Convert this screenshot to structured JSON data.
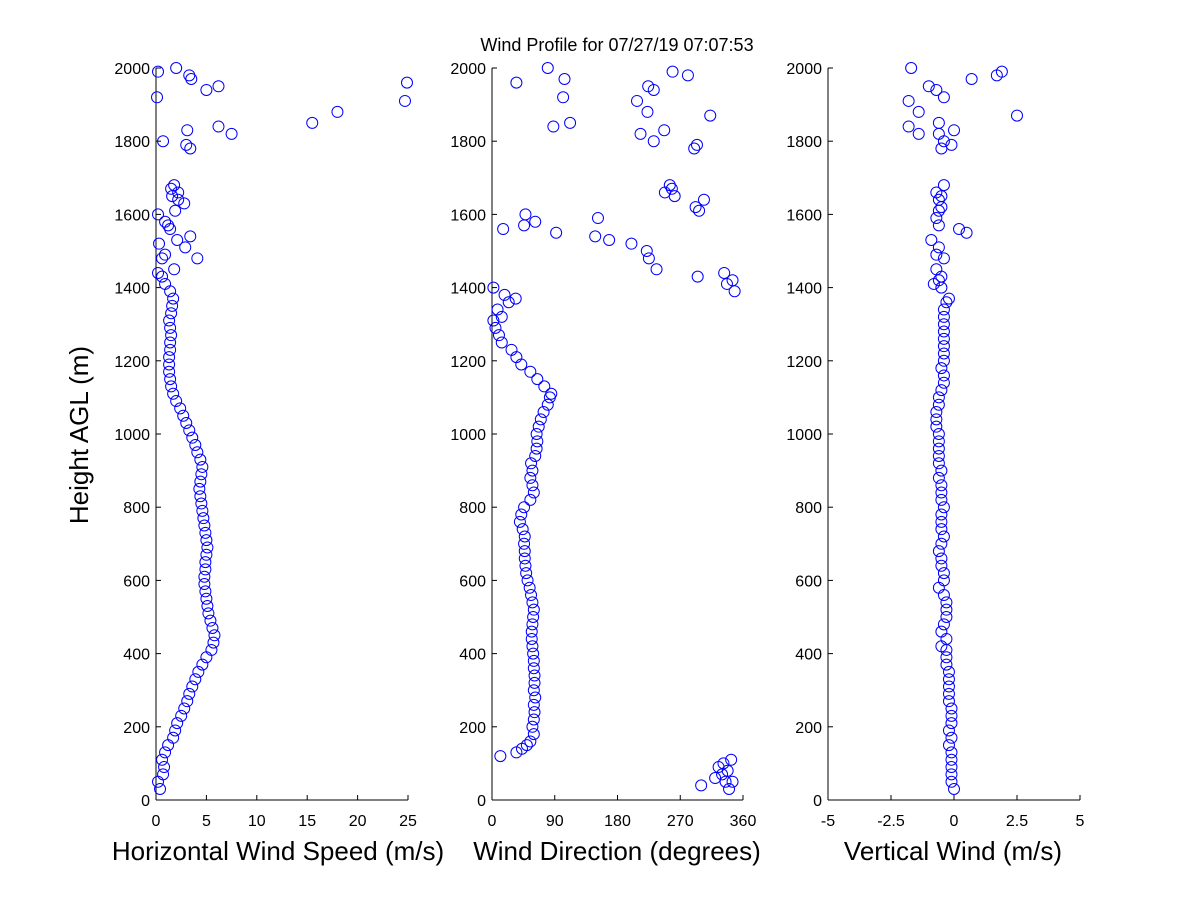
{
  "title": "Wind Profile for  07/27/19 07:07:53",
  "marker_color": "#0000ff",
  "chart_data": [
    {
      "type": "scatter",
      "xlabel": "Horizontal Wind Speed (m/s)",
      "ylabel": "Height AGL (m)",
      "xlim": [
        0,
        25
      ],
      "ylim": [
        0,
        2000
      ],
      "xticks": [
        "0",
        "5",
        "10",
        "15",
        "20",
        "25"
      ],
      "xtick_values": [
        0,
        5,
        10,
        15,
        20,
        25
      ],
      "yticks": [
        "0",
        "200",
        "400",
        "600",
        "800",
        "1000",
        "1200",
        "1400",
        "1600",
        "1800",
        "2000"
      ],
      "ytick_values": [
        0,
        200,
        400,
        600,
        800,
        1000,
        1200,
        1400,
        1600,
        1800,
        2000
      ],
      "grid": false,
      "points": [
        [
          0.4,
          30
        ],
        [
          0.2,
          50
        ],
        [
          0.7,
          70
        ],
        [
          0.8,
          90
        ],
        [
          0.6,
          110
        ],
        [
          0.9,
          130
        ],
        [
          1.2,
          150
        ],
        [
          1.7,
          170
        ],
        [
          1.9,
          190
        ],
        [
          2.1,
          210
        ],
        [
          2.5,
          230
        ],
        [
          2.8,
          250
        ],
        [
          3.1,
          270
        ],
        [
          3.3,
          290
        ],
        [
          3.6,
          310
        ],
        [
          3.9,
          330
        ],
        [
          4.2,
          350
        ],
        [
          4.6,
          370
        ],
        [
          5.0,
          390
        ],
        [
          5.5,
          410
        ],
        [
          5.7,
          430
        ],
        [
          5.8,
          450
        ],
        [
          5.6,
          470
        ],
        [
          5.4,
          490
        ],
        [
          5.2,
          510
        ],
        [
          5.1,
          530
        ],
        [
          5.0,
          550
        ],
        [
          4.9,
          570
        ],
        [
          4.8,
          590
        ],
        [
          4.8,
          610
        ],
        [
          4.9,
          630
        ],
        [
          4.9,
          650
        ],
        [
          5.0,
          670
        ],
        [
          5.1,
          690
        ],
        [
          5.0,
          710
        ],
        [
          4.9,
          730
        ],
        [
          4.8,
          750
        ],
        [
          4.7,
          770
        ],
        [
          4.6,
          790
        ],
        [
          4.5,
          810
        ],
        [
          4.4,
          830
        ],
        [
          4.3,
          850
        ],
        [
          4.4,
          870
        ],
        [
          4.5,
          890
        ],
        [
          4.6,
          910
        ],
        [
          4.4,
          930
        ],
        [
          4.1,
          950
        ],
        [
          3.9,
          970
        ],
        [
          3.6,
          990
        ],
        [
          3.3,
          1010
        ],
        [
          3.0,
          1030
        ],
        [
          2.7,
          1050
        ],
        [
          2.4,
          1070
        ],
        [
          2.0,
          1090
        ],
        [
          1.7,
          1110
        ],
        [
          1.5,
          1130
        ],
        [
          1.4,
          1150
        ],
        [
          1.3,
          1170
        ],
        [
          1.3,
          1190
        ],
        [
          1.3,
          1210
        ],
        [
          1.4,
          1230
        ],
        [
          1.4,
          1250
        ],
        [
          1.5,
          1270
        ],
        [
          1.4,
          1290
        ],
        [
          1.3,
          1310
        ],
        [
          1.5,
          1330
        ],
        [
          1.6,
          1350
        ],
        [
          1.7,
          1370
        ],
        [
          1.4,
          1390
        ],
        [
          0.9,
          1410
        ],
        [
          0.6,
          1430
        ],
        [
          0.2,
          1440
        ],
        [
          1.8,
          1450
        ],
        [
          0.9,
          1490
        ],
        [
          0.6,
          1480
        ],
        [
          2.9,
          1510
        ],
        [
          2.1,
          1530
        ],
        [
          3.4,
          1540
        ],
        [
          1.4,
          1560
        ],
        [
          1.2,
          1570
        ],
        [
          0.9,
          1580
        ],
        [
          0.2,
          1600
        ],
        [
          1.9,
          1610
        ],
        [
          2.8,
          1630
        ],
        [
          2.2,
          1640
        ],
        [
          1.6,
          1650
        ],
        [
          2.2,
          1660
        ],
        [
          1.5,
          1670
        ],
        [
          1.8,
          1680
        ],
        [
          4.1,
          1480
        ],
        [
          0.3,
          1520
        ],
        [
          3.0,
          1790
        ],
        [
          3.4,
          1780
        ],
        [
          0.7,
          1800
        ],
        [
          3.1,
          1830
        ],
        [
          7.5,
          1820
        ],
        [
          6.2,
          1840
        ],
        [
          15.5,
          1850
        ],
        [
          18.0,
          1880
        ],
        [
          24.7,
          1910
        ],
        [
          0.1,
          1920
        ],
        [
          5.0,
          1940
        ],
        [
          6.2,
          1950
        ],
        [
          24.9,
          1960
        ],
        [
          3.3,
          1980
        ],
        [
          3.5,
          1970
        ],
        [
          0.2,
          1990
        ],
        [
          2.0,
          2000
        ]
      ]
    },
    {
      "type": "scatter",
      "xlabel": "Wind Direction (degrees)",
      "ylabel": "",
      "xlim": [
        0,
        360
      ],
      "ylim": [
        0,
        2000
      ],
      "xticks": [
        "0",
        "90",
        "180",
        "270",
        "360"
      ],
      "xtick_values": [
        0,
        90,
        180,
        270,
        360
      ],
      "yticks": [
        "0",
        "200",
        "400",
        "600",
        "800",
        "1000",
        "1200",
        "1400",
        "1600",
        "1800",
        "2000"
      ],
      "ytick_values": [
        0,
        200,
        400,
        600,
        800,
        1000,
        1200,
        1400,
        1600,
        1800,
        2000
      ],
      "grid": false,
      "points": [
        [
          300,
          40
        ],
        [
          340,
          30
        ],
        [
          335,
          50
        ],
        [
          320,
          60
        ],
        [
          345,
          50
        ],
        [
          330,
          70
        ],
        [
          338,
          80
        ],
        [
          325,
          90
        ],
        [
          332,
          100
        ],
        [
          343,
          110
        ],
        [
          12,
          120
        ],
        [
          35,
          130
        ],
        [
          43,
          140
        ],
        [
          50,
          150
        ],
        [
          55,
          160
        ],
        [
          60,
          180
        ],
        [
          58,
          200
        ],
        [
          60,
          220
        ],
        [
          61,
          240
        ],
        [
          60,
          260
        ],
        [
          62,
          280
        ],
        [
          60,
          300
        ],
        [
          61,
          320
        ],
        [
          61,
          340
        ],
        [
          60,
          360
        ],
        [
          60,
          380
        ],
        [
          59,
          400
        ],
        [
          58,
          420
        ],
        [
          57,
          440
        ],
        [
          57,
          460
        ],
        [
          58,
          480
        ],
        [
          59,
          500
        ],
        [
          60,
          520
        ],
        [
          58,
          540
        ],
        [
          56,
          560
        ],
        [
          54,
          580
        ],
        [
          51,
          600
        ],
        [
          49,
          620
        ],
        [
          48,
          640
        ],
        [
          47,
          660
        ],
        [
          47,
          680
        ],
        [
          46,
          700
        ],
        [
          47,
          720
        ],
        [
          44,
          740
        ],
        [
          40,
          760
        ],
        [
          42,
          780
        ],
        [
          46,
          800
        ],
        [
          55,
          820
        ],
        [
          60,
          840
        ],
        [
          58,
          860
        ],
        [
          55,
          880
        ],
        [
          58,
          900
        ],
        [
          56,
          920
        ],
        [
          62,
          940
        ],
        [
          64,
          960
        ],
        [
          65,
          980
        ],
        [
          64,
          1000
        ],
        [
          67,
          1020
        ],
        [
          70,
          1040
        ],
        [
          74,
          1060
        ],
        [
          80,
          1080
        ],
        [
          83,
          1100
        ],
        [
          85,
          1110
        ],
        [
          75,
          1130
        ],
        [
          65,
          1150
        ],
        [
          55,
          1170
        ],
        [
          42,
          1190
        ],
        [
          35,
          1210
        ],
        [
          28,
          1230
        ],
        [
          14,
          1250
        ],
        [
          10,
          1270
        ],
        [
          5,
          1290
        ],
        [
          2,
          1310
        ],
        [
          14,
          1320
        ],
        [
          8,
          1340
        ],
        [
          24,
          1360
        ],
        [
          34,
          1370
        ],
        [
          18,
          1380
        ],
        [
          2,
          1400
        ],
        [
          348,
          1390
        ],
        [
          337,
          1410
        ],
        [
          333,
          1440
        ],
        [
          345,
          1420
        ],
        [
          295,
          1430
        ],
        [
          236,
          1450
        ],
        [
          225,
          1480
        ],
        [
          222,
          1500
        ],
        [
          200,
          1520
        ],
        [
          168,
          1530
        ],
        [
          148,
          1540
        ],
        [
          92,
          1550
        ],
        [
          16,
          1560
        ],
        [
          46,
          1570
        ],
        [
          62,
          1580
        ],
        [
          152,
          1590
        ],
        [
          48,
          1600
        ],
        [
          297,
          1610
        ],
        [
          292,
          1620
        ],
        [
          304,
          1640
        ],
        [
          262,
          1650
        ],
        [
          248,
          1660
        ],
        [
          258,
          1670
        ],
        [
          255,
          1680
        ],
        [
          290,
          1780
        ],
        [
          294,
          1790
        ],
        [
          232,
          1800
        ],
        [
          213,
          1820
        ],
        [
          247,
          1830
        ],
        [
          88,
          1840
        ],
        [
          112,
          1850
        ],
        [
          313,
          1870
        ],
        [
          223,
          1880
        ],
        [
          208,
          1910
        ],
        [
          102,
          1920
        ],
        [
          232,
          1940
        ],
        [
          224,
          1950
        ],
        [
          35,
          1960
        ],
        [
          104,
          1970
        ],
        [
          281,
          1980
        ],
        [
          259,
          1990
        ],
        [
          80,
          2000
        ]
      ]
    },
    {
      "type": "scatter",
      "xlabel": "Vertical Wind (m/s)",
      "ylabel": "",
      "xlim": [
        -5,
        5
      ],
      "ylim": [
        0,
        2000
      ],
      "xticks": [
        "-5",
        "-2.5",
        "0",
        "2.5",
        "5"
      ],
      "xtick_values": [
        -5,
        -2.5,
        0,
        2.5,
        5
      ],
      "yticks": [
        "0",
        "200",
        "400",
        "600",
        "800",
        "1000",
        "1200",
        "1400",
        "1600",
        "1800",
        "2000"
      ],
      "ytick_values": [
        0,
        200,
        400,
        600,
        800,
        1000,
        1200,
        1400,
        1600,
        1800,
        2000
      ],
      "grid": false,
      "points": [
        [
          0.0,
          30
        ],
        [
          -0.1,
          50
        ],
        [
          -0.1,
          70
        ],
        [
          -0.1,
          90
        ],
        [
          -0.1,
          110
        ],
        [
          -0.1,
          130
        ],
        [
          -0.2,
          150
        ],
        [
          -0.1,
          170
        ],
        [
          -0.2,
          190
        ],
        [
          -0.1,
          210
        ],
        [
          -0.1,
          230
        ],
        [
          -0.1,
          250
        ],
        [
          -0.2,
          270
        ],
        [
          -0.2,
          290
        ],
        [
          -0.2,
          310
        ],
        [
          -0.2,
          330
        ],
        [
          -0.2,
          350
        ],
        [
          -0.3,
          370
        ],
        [
          -0.3,
          390
        ],
        [
          -0.3,
          410
        ],
        [
          -0.5,
          420
        ],
        [
          -0.3,
          440
        ],
        [
          -0.5,
          460
        ],
        [
          -0.4,
          480
        ],
        [
          -0.3,
          500
        ],
        [
          -0.3,
          520
        ],
        [
          -0.3,
          540
        ],
        [
          -0.4,
          560
        ],
        [
          -0.6,
          580
        ],
        [
          -0.4,
          600
        ],
        [
          -0.4,
          620
        ],
        [
          -0.5,
          640
        ],
        [
          -0.5,
          660
        ],
        [
          -0.6,
          680
        ],
        [
          -0.5,
          700
        ],
        [
          -0.4,
          720
        ],
        [
          -0.5,
          740
        ],
        [
          -0.5,
          760
        ],
        [
          -0.5,
          780
        ],
        [
          -0.4,
          800
        ],
        [
          -0.5,
          820
        ],
        [
          -0.5,
          840
        ],
        [
          -0.5,
          860
        ],
        [
          -0.6,
          880
        ],
        [
          -0.5,
          900
        ],
        [
          -0.6,
          920
        ],
        [
          -0.6,
          940
        ],
        [
          -0.6,
          960
        ],
        [
          -0.6,
          980
        ],
        [
          -0.6,
          1000
        ],
        [
          -0.7,
          1020
        ],
        [
          -0.7,
          1040
        ],
        [
          -0.7,
          1060
        ],
        [
          -0.6,
          1080
        ],
        [
          -0.6,
          1100
        ],
        [
          -0.5,
          1120
        ],
        [
          -0.4,
          1140
        ],
        [
          -0.4,
          1160
        ],
        [
          -0.5,
          1180
        ],
        [
          -0.4,
          1200
        ],
        [
          -0.4,
          1220
        ],
        [
          -0.4,
          1240
        ],
        [
          -0.4,
          1260
        ],
        [
          -0.4,
          1280
        ],
        [
          -0.4,
          1300
        ],
        [
          -0.4,
          1320
        ],
        [
          -0.4,
          1340
        ],
        [
          -0.3,
          1360
        ],
        [
          -0.2,
          1370
        ],
        [
          -0.5,
          1400
        ],
        [
          -0.8,
          1410
        ],
        [
          -0.6,
          1420
        ],
        [
          -0.5,
          1430
        ],
        [
          -0.7,
          1450
        ],
        [
          -0.4,
          1480
        ],
        [
          -0.7,
          1490
        ],
        [
          -0.6,
          1510
        ],
        [
          -0.9,
          1530
        ],
        [
          0.5,
          1550
        ],
        [
          0.2,
          1560
        ],
        [
          -0.6,
          1570
        ],
        [
          -0.7,
          1590
        ],
        [
          -0.6,
          1610
        ],
        [
          -0.5,
          1620
        ],
        [
          -0.6,
          1640
        ],
        [
          -0.5,
          1650
        ],
        [
          -0.7,
          1660
        ],
        [
          -0.4,
          1680
        ],
        [
          -0.5,
          1780
        ],
        [
          -0.1,
          1790
        ],
        [
          -0.4,
          1800
        ],
        [
          -1.4,
          1820
        ],
        [
          -0.6,
          1820
        ],
        [
          0.0,
          1830
        ],
        [
          -1.8,
          1840
        ],
        [
          -0.6,
          1850
        ],
        [
          2.5,
          1870
        ],
        [
          -1.4,
          1880
        ],
        [
          -1.8,
          1910
        ],
        [
          -0.4,
          1920
        ],
        [
          -0.7,
          1940
        ],
        [
          -1.0,
          1950
        ],
        [
          0.7,
          1970
        ],
        [
          1.7,
          1980
        ],
        [
          1.9,
          1990
        ],
        [
          -1.7,
          2000
        ]
      ]
    }
  ]
}
